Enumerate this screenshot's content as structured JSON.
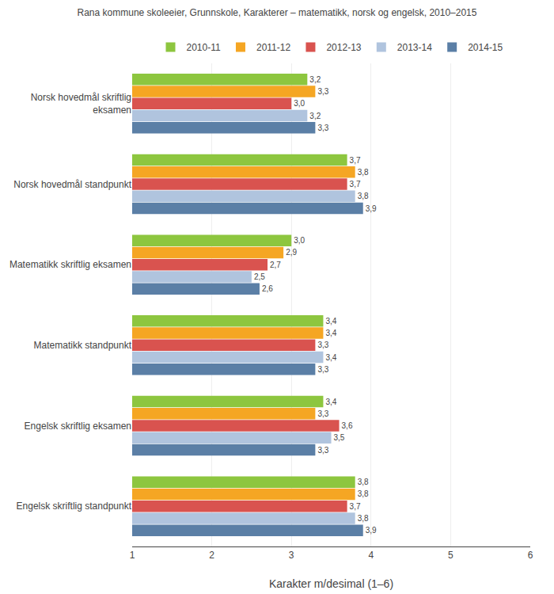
{
  "chart_data": {
    "type": "bar",
    "orientation": "horizontal",
    "title": "Rana kommune skoleeier, Grunnskole, Karakterer – matematikk, norsk og engelsk, 2010–2015",
    "xlabel": "Karakter m/desimal (1–6)",
    "categories": [
      "Norsk hovedmål skriftlig\neksamen",
      "Norsk hovedmål standpunkt",
      "Matematikk skriftlig eksamen",
      "Matematikk standpunkt",
      "Engelsk skriftlig eksamen",
      "Engelsk skriftlig standpunkt"
    ],
    "series": [
      {
        "name": "2010-11",
        "color": "#8dc63f",
        "values": [
          3.2,
          3.7,
          3.0,
          3.4,
          3.4,
          3.8
        ],
        "value_labels": [
          "3,2",
          "3,7",
          "3,0",
          "3,4",
          "3,4",
          "3,8"
        ]
      },
      {
        "name": "2011-12",
        "color": "#f5a623",
        "values": [
          3.3,
          3.8,
          2.9,
          3.4,
          3.3,
          3.8
        ],
        "value_labels": [
          "3,3",
          "3,8",
          "2,9",
          "3,4",
          "3,3",
          "3,8"
        ]
      },
      {
        "name": "2012-13",
        "color": "#d9534f",
        "values": [
          3.0,
          3.7,
          2.7,
          3.3,
          3.6,
          3.7
        ],
        "value_labels": [
          "3,0",
          "3,7",
          "2,7",
          "3,3",
          "3,6",
          "3,7"
        ]
      },
      {
        "name": "2013-14",
        "color": "#b0c4de",
        "values": [
          3.2,
          3.8,
          2.5,
          3.4,
          3.5,
          3.8
        ],
        "value_labels": [
          "3,2",
          "3,8",
          "2,5",
          "3,4",
          "3,5",
          "3,8"
        ]
      },
      {
        "name": "2014-15",
        "color": "#5b7fa6",
        "values": [
          3.3,
          3.9,
          2.6,
          3.3,
          3.3,
          3.9
        ],
        "value_labels": [
          "3,3",
          "3,9",
          "2,6",
          "3,3",
          "3,3",
          "3,9"
        ]
      }
    ],
    "xlim": [
      1,
      6
    ],
    "xticks": [
      1,
      2,
      3,
      4,
      5,
      6
    ],
    "grid": true,
    "data_labels": true,
    "legend": "top"
  }
}
